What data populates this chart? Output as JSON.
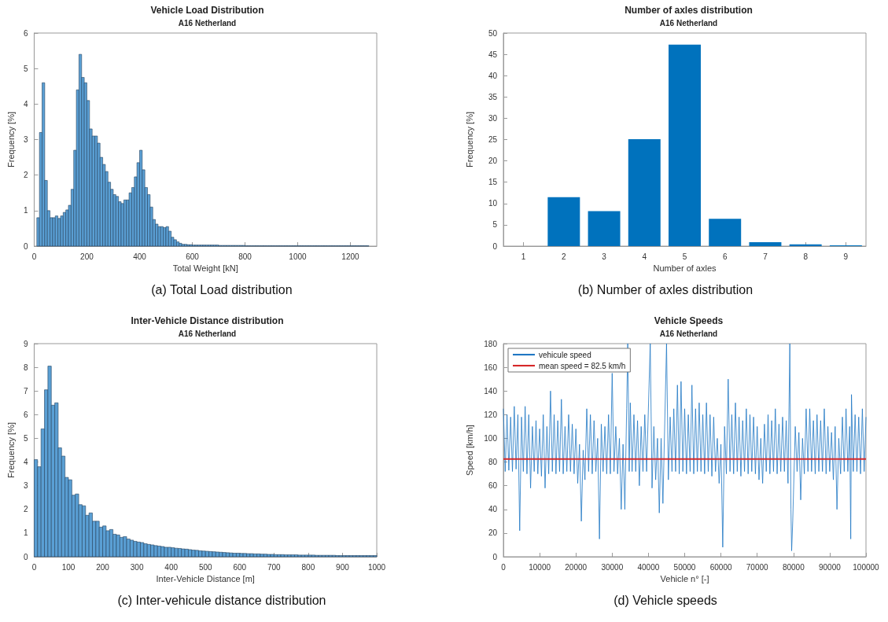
{
  "chart_data": [
    {
      "type": "histogram",
      "title": "Vehicle Load Distribution",
      "subtitle": "A16 Netherland",
      "xlabel": "Total Weight [kN]",
      "ylabel": "Frequency [%]",
      "annotations": [
        "(a) Total Load distribution"
      ],
      "color": "#5a9fd4",
      "bins": [
        10,
        20,
        30,
        40,
        50,
        60,
        70,
        80,
        90,
        100,
        110,
        120,
        130,
        140,
        150,
        160,
        170,
        180,
        190,
        200,
        210,
        220,
        230,
        240,
        250,
        260,
        270,
        280,
        290,
        300,
        310,
        320,
        330,
        340,
        350,
        360,
        370,
        380,
        390,
        400,
        410,
        420,
        430,
        440,
        450,
        460,
        470,
        480,
        490,
        500,
        510,
        520,
        530,
        540,
        550,
        560,
        570,
        580,
        590,
        600,
        610,
        620,
        630,
        640,
        650,
        660,
        670,
        680,
        690,
        700,
        710,
        720,
        730,
        740,
        750,
        760,
        770,
        780,
        790,
        800,
        810,
        820,
        830,
        840,
        850,
        860,
        870,
        880,
        890,
        900,
        910,
        920,
        930,
        940,
        950,
        960,
        970,
        980,
        990,
        1000,
        1010,
        1020,
        1030,
        1040,
        1050,
        1060,
        1070,
        1080,
        1090,
        1100,
        1110,
        1120,
        1130,
        1140,
        1150,
        1160,
        1170,
        1180,
        1190,
        1200,
        1210,
        1220,
        1230,
        1240,
        1250,
        1260,
        1270
      ],
      "values": [
        0.8,
        3.2,
        4.6,
        1.85,
        1.0,
        0.8,
        0.8,
        0.85,
        0.78,
        0.85,
        0.95,
        1.02,
        1.15,
        1.6,
        2.7,
        4.4,
        5.4,
        4.75,
        4.6,
        4.1,
        3.3,
        3.1,
        3.1,
        2.9,
        2.5,
        2.3,
        2.1,
        1.8,
        1.6,
        1.45,
        1.4,
        1.25,
        1.2,
        1.3,
        1.3,
        1.5,
        1.65,
        1.95,
        2.35,
        2.7,
        2.15,
        1.65,
        1.45,
        1.1,
        0.75,
        0.62,
        0.55,
        0.55,
        0.52,
        0.55,
        0.42,
        0.25,
        0.18,
        0.12,
        0.08,
        0.05,
        0.05,
        0.04,
        0.04,
        0.03,
        0.03,
        0.03,
        0.03,
        0.03,
        0.03,
        0.03,
        0.03,
        0.03,
        0.03,
        0.02,
        0.02,
        0.02,
        0.02,
        0.02,
        0.02,
        0.02,
        0.02,
        0.02,
        0.02,
        0.01,
        0.01,
        0.01,
        0.01,
        0.01,
        0.01,
        0.01,
        0.01,
        0.01,
        0.01,
        0.01,
        0.01,
        0.01,
        0.01,
        0.01,
        0.01,
        0.01,
        0.01,
        0.01,
        0.01,
        0.01,
        0.01,
        0.01,
        0.01,
        0.01,
        0.01,
        0.01,
        0.01,
        0.01,
        0.01,
        0.01,
        0.01,
        0.01,
        0.01,
        0.01,
        0.01,
        0.01,
        0.01,
        0.01,
        0.01,
        0.01,
        0.01,
        0.01,
        0.01,
        0.01,
        0.01,
        0.01
      ],
      "xlim": [
        0,
        1300
      ],
      "xticks": [
        0,
        200,
        400,
        600,
        800,
        1000,
        1200
      ],
      "ylim": [
        0,
        6
      ],
      "yticks": [
        0,
        1,
        2,
        3,
        4,
        5,
        6
      ]
    },
    {
      "type": "bar",
      "title": "Number of axles distribution",
      "subtitle": "A16 Netherland",
      "xlabel": "Number of axles",
      "ylabel": "Frequency [%]",
      "annotations": [
        "(b) Number of axles distribution"
      ],
      "color": "#0072bd",
      "categories": [
        "1",
        "2",
        "3",
        "4",
        "5",
        "6",
        "7",
        "8",
        "9"
      ],
      "values": [
        0,
        11.5,
        8.2,
        25.1,
        47.3,
        6.4,
        0.9,
        0.4,
        0.2
      ],
      "ylim": [
        0,
        50
      ],
      "yticks": [
        0,
        5,
        10,
        15,
        20,
        25,
        30,
        35,
        40,
        45,
        50
      ]
    },
    {
      "type": "histogram",
      "title": "Inter-Vehicle Distance distribution",
      "subtitle": "A16 Netherland",
      "xlabel": "Inter-Vehicle Distance [m]",
      "ylabel": "Frequency [%]",
      "annotations": [
        "(c) Inter-vehicule distance distribution"
      ],
      "color": "#5a9fd4",
      "bins": [
        0,
        10,
        20,
        30,
        40,
        50,
        60,
        70,
        80,
        90,
        100,
        110,
        120,
        130,
        140,
        150,
        160,
        170,
        180,
        190,
        200,
        210,
        220,
        230,
        240,
        250,
        260,
        270,
        280,
        290,
        300,
        310,
        320,
        330,
        340,
        350,
        360,
        370,
        380,
        390,
        400,
        410,
        420,
        430,
        440,
        450,
        460,
        470,
        480,
        490,
        500,
        510,
        520,
        530,
        540,
        550,
        560,
        570,
        580,
        590,
        600,
        610,
        620,
        630,
        640,
        650,
        660,
        670,
        680,
        690,
        700,
        710,
        720,
        730,
        740,
        750,
        760,
        770,
        780,
        790,
        800,
        810,
        820,
        830,
        840,
        850,
        860,
        870,
        880,
        890,
        900,
        910,
        920,
        930,
        940,
        950,
        960,
        970,
        980,
        990,
        1000
      ],
      "values": [
        4.1,
        3.8,
        5.4,
        7.05,
        8.05,
        6.4,
        6.5,
        4.6,
        4.25,
        3.35,
        3.25,
        2.6,
        2.65,
        2.2,
        2.15,
        1.75,
        1.85,
        1.5,
        1.5,
        1.25,
        1.3,
        1.1,
        1.15,
        0.95,
        0.92,
        0.82,
        0.85,
        0.75,
        0.7,
        0.65,
        0.62,
        0.6,
        0.55,
        0.52,
        0.5,
        0.47,
        0.45,
        0.43,
        0.4,
        0.4,
        0.38,
        0.36,
        0.35,
        0.33,
        0.32,
        0.3,
        0.28,
        0.27,
        0.25,
        0.24,
        0.23,
        0.22,
        0.21,
        0.2,
        0.19,
        0.18,
        0.17,
        0.16,
        0.15,
        0.15,
        0.14,
        0.14,
        0.13,
        0.13,
        0.12,
        0.12,
        0.11,
        0.11,
        0.1,
        0.1,
        0.09,
        0.09,
        0.09,
        0.08,
        0.08,
        0.08,
        0.08,
        0.07,
        0.07,
        0.07,
        0.07,
        0.07,
        0.06,
        0.06,
        0.06,
        0.06,
        0.06,
        0.06,
        0.05,
        0.05,
        0.05,
        0.05,
        0.05,
        0.05,
        0.05,
        0.05,
        0.05,
        0.05,
        0.05,
        0.05
      ],
      "xlim": [
        0,
        1000
      ],
      "xticks": [
        0,
        100,
        200,
        300,
        400,
        500,
        600,
        700,
        800,
        900,
        1000
      ],
      "ylim": [
        0,
        9
      ],
      "yticks": [
        0,
        1,
        2,
        3,
        4,
        5,
        6,
        7,
        8,
        9
      ]
    },
    {
      "type": "line",
      "title": "Vehicle Speeds",
      "subtitle": "A16 Netherland",
      "xlabel": "Vehicle n° [-]",
      "ylabel": "Speed [km/h]",
      "annotations": [
        "(d) Vehicle speeds"
      ],
      "legend": "top left",
      "marker": "none",
      "xlim": [
        0,
        100000
      ],
      "xticks": [
        0,
        10000,
        20000,
        30000,
        40000,
        50000,
        60000,
        70000,
        80000,
        90000,
        100000
      ],
      "ylim": [
        0,
        180
      ],
      "yticks": [
        0,
        20,
        40,
        60,
        80,
        100,
        120,
        140,
        160,
        180
      ],
      "ref_lines": [
        {
          "axis": "y",
          "value": 82.5,
          "label": "mean speed = 82.5 km/h",
          "color": "#d62728"
        }
      ],
      "series": [
        {
          "name": "vehicule speed",
          "color": "#1f77c4",
          "x": [
            0,
            500,
            1000,
            1500,
            2000,
            2500,
            3000,
            3500,
            4000,
            4500,
            5000,
            5500,
            6000,
            6500,
            7000,
            7500,
            8000,
            8500,
            9000,
            9500,
            10000,
            10500,
            11000,
            11500,
            12000,
            12500,
            13000,
            13500,
            14000,
            14500,
            15000,
            15500,
            16000,
            16500,
            17000,
            17500,
            18000,
            18500,
            19000,
            19500,
            20000,
            20500,
            21000,
            21500,
            22000,
            22500,
            23000,
            23500,
            24000,
            24500,
            25000,
            25500,
            26000,
            26500,
            27000,
            27500,
            28000,
            28500,
            29000,
            29500,
            30000,
            30500,
            31000,
            31500,
            32000,
            32500,
            33000,
            33500,
            34000,
            34300,
            34700,
            35000,
            35500,
            36000,
            36500,
            37000,
            37500,
            38000,
            38500,
            39000,
            39500,
            40500,
            41000,
            41500,
            42000,
            42500,
            43000,
            43500,
            44000,
            45000,
            45500,
            46000,
            46500,
            47000,
            47500,
            48000,
            48500,
            49000,
            49500,
            50000,
            50500,
            51000,
            51500,
            52000,
            52500,
            53000,
            53500,
            54000,
            54500,
            55000,
            55500,
            56000,
            56500,
            57000,
            57500,
            58000,
            58500,
            59000,
            59500,
            60000,
            60500,
            61000,
            61500,
            62000,
            62500,
            63000,
            63500,
            64000,
            64500,
            65000,
            65500,
            66000,
            66500,
            67000,
            67500,
            68000,
            68500,
            69000,
            69500,
            70000,
            70500,
            71000,
            71500,
            72000,
            72500,
            73000,
            73500,
            74000,
            74500,
            75000,
            75500,
            76000,
            76500,
            77000,
            77500,
            78000,
            78500,
            79000,
            79300,
            79500,
            79800,
            80500,
            81000,
            81500,
            82000,
            82500,
            83000,
            83500,
            84000,
            84500,
            85000,
            85500,
            86000,
            86500,
            87000,
            87500,
            88000,
            88500,
            89000,
            89500,
            90000,
            90500,
            91000,
            91500,
            92000,
            92500,
            93000,
            93500,
            94000,
            94500,
            95000,
            95500,
            95800,
            96000,
            96500,
            97000,
            97500,
            98000,
            98500,
            99000,
            99500,
            100000
          ],
          "values": [
            125,
            72,
            120,
            73,
            118,
            72,
            127,
            74,
            120,
            22,
            118,
            72,
            127,
            70,
            120,
            58,
            110,
            72,
            115,
            70,
            108,
            68,
            120,
            58,
            110,
            70,
            140,
            72,
            120,
            70,
            115,
            72,
            133,
            70,
            110,
            72,
            120,
            72,
            112,
            70,
            108,
            62,
            95,
            30,
            90,
            65,
            125,
            72,
            120,
            70,
            115,
            72,
            100,
            15,
            112,
            72,
            110,
            70,
            120,
            70,
            155,
            72,
            110,
            70,
            100,
            40,
            95,
            40,
            125,
            180,
            72,
            130,
            72,
            120,
            72,
            115,
            60,
            110,
            72,
            120,
            72,
            180,
            58,
            110,
            65,
            100,
            37,
            100,
            45,
            180,
            65,
            118,
            72,
            125,
            72,
            145,
            70,
            148,
            72,
            125,
            70,
            120,
            72,
            145,
            70,
            125,
            72,
            130,
            72,
            120,
            70,
            130,
            72,
            120,
            68,
            118,
            72,
            100,
            62,
            95,
            8,
            110,
            70,
            150,
            72,
            120,
            70,
            130,
            72,
            118,
            68,
            115,
            72,
            125,
            70,
            120,
            72,
            118,
            70,
            110,
            65,
            100,
            62,
            112,
            72,
            120,
            70,
            115,
            72,
            125,
            70,
            112,
            72,
            118,
            72,
            115,
            62,
            180,
            40,
            5,
            30,
            110,
            72,
            105,
            48,
            100,
            70,
            125,
            72,
            125,
            72,
            115,
            70,
            120,
            72,
            115,
            72,
            125,
            70,
            110,
            72,
            105,
            65,
            110,
            40,
            100,
            70,
            118,
            72,
            125,
            72,
            110,
            15,
            137,
            72,
            120,
            72,
            118,
            70,
            125,
            72,
            118
          ]
        }
      ]
    }
  ]
}
